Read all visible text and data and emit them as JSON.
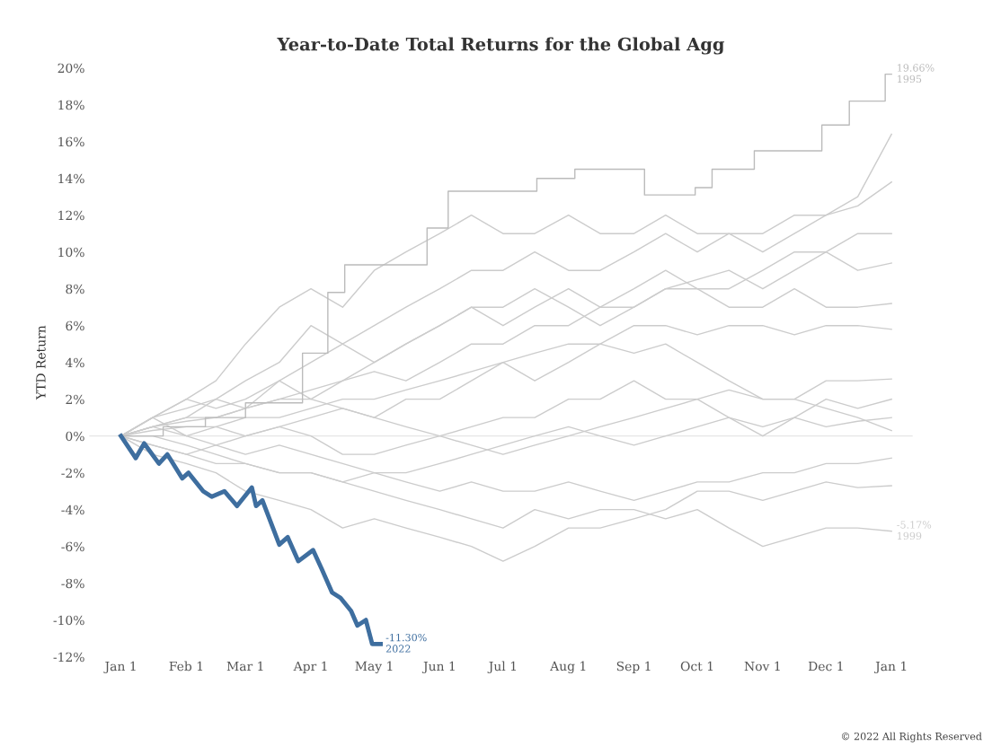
{
  "chart_data": {
    "type": "line",
    "title": "Year-to-Date Total Returns for the Global Agg",
    "ylabel": "YTD Return",
    "x": [
      "2022-01-01",
      "2022-01-16",
      "2022-02-01",
      "2022-02-15",
      "2022-03-01",
      "2022-03-17",
      "2022-04-01",
      "2022-04-16",
      "2022-05-01",
      "2022-05-16",
      "2022-06-01",
      "2022-06-16",
      "2022-07-01",
      "2022-07-16",
      "2022-08-01",
      "2022-08-16",
      "2022-09-01",
      "2022-09-16",
      "2022-10-01",
      "2022-10-16",
      "2022-11-01",
      "2022-11-16",
      "2022-12-01",
      "2022-12-16",
      "2023-01-01"
    ],
    "xlim": [
      "2021-12-17",
      "2023-01-11"
    ],
    "ylim": [
      -12,
      20
    ],
    "xticks": [
      {
        "value": "2022-01-01",
        "label": "Jan 1"
      },
      {
        "value": "2022-02-01",
        "label": "Feb 1"
      },
      {
        "value": "2022-03-01",
        "label": "Mar 1"
      },
      {
        "value": "2022-04-01",
        "label": "Apr 1"
      },
      {
        "value": "2022-05-01",
        "label": "May 1"
      },
      {
        "value": "2022-06-01",
        "label": "Jun 1"
      },
      {
        "value": "2022-07-01",
        "label": "Jul 1"
      },
      {
        "value": "2022-08-01",
        "label": "Aug 1"
      },
      {
        "value": "2022-09-01",
        "label": "Sep 1"
      },
      {
        "value": "2022-10-01",
        "label": "Oct 1"
      },
      {
        "value": "2022-11-01",
        "label": "Nov 1"
      },
      {
        "value": "2022-12-01",
        "label": "Dec 1"
      },
      {
        "value": "2023-01-01",
        "label": "Jan 1"
      }
    ],
    "yticks": [
      {
        "value": -12,
        "label": "-12%"
      },
      {
        "value": -10,
        "label": "-10%"
      },
      {
        "value": -8,
        "label": "-8%"
      },
      {
        "value": -6,
        "label": "-6%"
      },
      {
        "value": -4,
        "label": "-4%"
      },
      {
        "value": -2,
        "label": "-2%"
      },
      {
        "value": 0,
        "label": "0%"
      },
      {
        "value": 2,
        "label": "2%"
      },
      {
        "value": 4,
        "label": "4%"
      },
      {
        "value": 6,
        "label": "6%"
      },
      {
        "value": 8,
        "label": "8%"
      },
      {
        "value": 10,
        "label": "10%"
      },
      {
        "value": 12,
        "label": "12%"
      },
      {
        "value": 14,
        "label": "14%"
      },
      {
        "value": 16,
        "label": "16%"
      },
      {
        "value": 18,
        "label": "18%"
      },
      {
        "value": 20,
        "label": "20%"
      }
    ],
    "grid": false,
    "legend": false,
    "ref_lines": [
      {
        "axis": "y",
        "value": 0,
        "color": "#e6e6e6"
      }
    ],
    "series": [
      {
        "color": "#cccccc",
        "values": [
          0,
          1,
          2,
          3,
          5,
          7,
          8,
          7,
          9,
          10,
          11,
          12,
          11,
          11,
          12,
          11,
          11,
          12,
          11,
          11,
          10,
          11,
          12,
          13,
          16.4
        ]
      },
      {
        "color": "#cccccc",
        "values": [
          0,
          1,
          1.5,
          2,
          3,
          4,
          6,
          5,
          6,
          7,
          8,
          9,
          9,
          10,
          9,
          9,
          10,
          11,
          10,
          11,
          11,
          12,
          12,
          12.5,
          13.8
        ]
      },
      {
        "color": "#cccccc",
        "values": [
          0,
          0.5,
          1,
          2,
          1.5,
          3,
          4,
          5,
          4,
          5,
          6,
          7,
          6,
          7,
          8,
          7,
          8,
          9,
          8,
          8,
          9,
          10,
          10,
          9,
          9.4
        ]
      },
      {
        "color": "#cccccc",
        "values": [
          0,
          0.5,
          0.8,
          1,
          1.5,
          2,
          2.5,
          3,
          3.5,
          3,
          4,
          5,
          5,
          6,
          6,
          7,
          7,
          8,
          8,
          7,
          7,
          8,
          7,
          7,
          7.2
        ]
      },
      {
        "color": "#cccccc",
        "values": [
          0,
          0.3,
          0.5,
          0.5,
          1,
          1,
          1.5,
          2,
          2,
          2.5,
          3,
          3.5,
          4,
          4.5,
          5,
          5,
          6,
          6,
          5.5,
          6,
          6,
          5.5,
          6,
          6,
          5.8
        ]
      },
      {
        "color": "#cccccc",
        "values": [
          0,
          1,
          0,
          0.5,
          0,
          0.5,
          1,
          1.5,
          1,
          2,
          2,
          3,
          4,
          3,
          4,
          5,
          4.5,
          5,
          4,
          3,
          2,
          2,
          3,
          3,
          3.1
        ]
      },
      {
        "color": "#cccccc",
        "values": [
          0,
          -0.5,
          -1,
          -0.5,
          0,
          0.5,
          0,
          -1,
          -1,
          -0.5,
          0,
          0.5,
          1,
          1,
          2,
          2,
          3,
          2,
          2,
          1,
          0,
          1,
          2,
          1.5,
          2
        ]
      },
      {
        "color": "#cccccc",
        "values": [
          0,
          0.5,
          0,
          -0.5,
          -1,
          -0.5,
          -1,
          -1.5,
          -2,
          -2,
          -1.5,
          -1,
          -0.5,
          0,
          0.5,
          0,
          -0.5,
          0,
          0.5,
          1,
          0.5,
          1,
          0.5,
          0.8,
          1
        ]
      },
      {
        "color": "#cccccc",
        "values": [
          0,
          0,
          -0.5,
          -1,
          -1.5,
          -2,
          -2,
          -2.5,
          -3,
          -3.5,
          -4,
          -4.5,
          -5,
          -4,
          -4.5,
          -4,
          -4,
          -4.5,
          -4,
          -5,
          -6,
          -5.5,
          -5,
          -5,
          -5.17
        ]
      },
      {
        "color": "#cccccc",
        "values": [
          0,
          -1,
          -1.5,
          -2,
          -3,
          -3.5,
          -4,
          -5,
          -4.5,
          -5,
          -5.5,
          -6,
          -6.8,
          -6,
          -5,
          -5,
          -4.5,
          -4,
          -3,
          -3,
          -3.5,
          -3,
          -2.5,
          -2.8,
          -2.7
        ]
      },
      {
        "color": "#cccccc",
        "values": [
          0,
          -0.5,
          -1,
          -1.5,
          -1.5,
          -2,
          -2,
          -2.5,
          -2,
          -2.5,
          -3,
          -2.5,
          -3,
          -3,
          -2.5,
          -3,
          -3.5,
          -3,
          -2.5,
          -2.5,
          -2,
          -2,
          -1.5,
          -1.5,
          -1.2
        ]
      },
      {
        "color": "#cccccc",
        "values": [
          0,
          0.5,
          1,
          1,
          1.5,
          2,
          2,
          1.5,
          1,
          0.5,
          0,
          -0.5,
          -1,
          -0.5,
          0,
          0.5,
          1,
          1.5,
          2,
          2.5,
          2,
          2,
          1.5,
          1,
          0.3
        ]
      },
      {
        "color": "#cccccc",
        "values": [
          0,
          1,
          2,
          1.5,
          2,
          3,
          2,
          3,
          4,
          5,
          6,
          7,
          7,
          8,
          7,
          6,
          7,
          8,
          8.5,
          9,
          8,
          9,
          10,
          11,
          11
        ]
      },
      {
        "type": "step",
        "color": "#bbbbbb",
        "x": [
          "2022-01-01",
          "2022-01-21",
          "2022-02-10",
          "2022-03-01",
          "2022-03-28",
          "2022-04-09",
          "2022-04-17",
          "2022-05-26",
          "2022-06-05",
          "2022-07-17",
          "2022-08-04",
          "2022-09-06",
          "2022-09-30",
          "2022-10-08",
          "2022-10-28",
          "2022-11-29",
          "2022-12-12",
          "2022-12-29",
          "2023-01-01"
        ],
        "values": [
          0,
          0.5,
          1,
          1.8,
          4.5,
          7.8,
          9.3,
          11.3,
          13.3,
          14.0,
          14.5,
          13.1,
          13.5,
          14.5,
          15.5,
          16.9,
          18.2,
          19.66,
          19.66
        ]
      },
      {
        "type": "line",
        "color": "#3e6e9f",
        "x": [
          "2022-01-01",
          "2022-01-08",
          "2022-01-12",
          "2022-01-19",
          "2022-01-23",
          "2022-01-30",
          "2022-02-02",
          "2022-02-09",
          "2022-02-13",
          "2022-02-19",
          "2022-02-25",
          "2022-03-04",
          "2022-03-06",
          "2022-03-09",
          "2022-03-14",
          "2022-03-17",
          "2022-03-21",
          "2022-03-26",
          "2022-04-02",
          "2022-04-06",
          "2022-04-11",
          "2022-04-15",
          "2022-04-20",
          "2022-04-23",
          "2022-04-27",
          "2022-04-30",
          "2022-05-04"
        ],
        "values": [
          0,
          -1.2,
          -0.4,
          -1.5,
          -1.0,
          -2.3,
          -2.0,
          -3.0,
          -3.3,
          -3.0,
          -3.8,
          -2.8,
          -3.8,
          -3.5,
          -5.0,
          -5.9,
          -5.5,
          -6.8,
          -6.2,
          -7.2,
          -8.5,
          -8.8,
          -9.5,
          -10.3,
          -10.0,
          -11.3,
          -11.3
        ]
      }
    ],
    "annotations": [
      {
        "text": "19.66%\n1995",
        "x": "2023-01-01",
        "y": 19.66
      },
      {
        "text": "-5.17%\n1999",
        "x": "2023-01-01",
        "y": -5.17
      },
      {
        "text": "-11.30%\n2022",
        "x": "2022-05-04",
        "y": -11.3
      },
      "© 2022 All Rights Reserved"
    ]
  }
}
